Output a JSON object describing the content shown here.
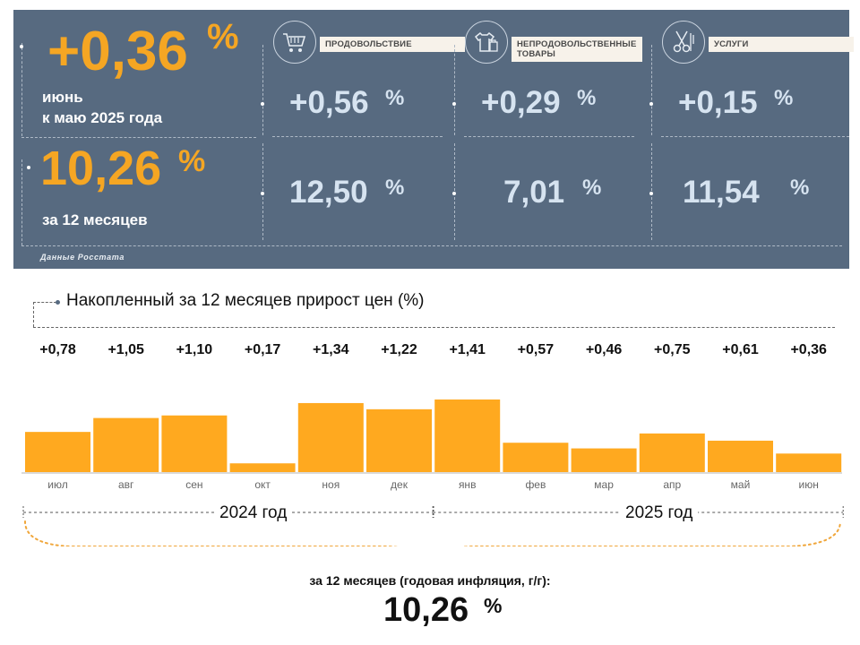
{
  "monthly": {
    "value": "+0,36",
    "percent_sign": "%",
    "caption_line1": "июнь",
    "caption_line2": "к маю 2025 года"
  },
  "annual": {
    "value": "10,26",
    "percent_sign": "%",
    "caption": "за 12 месяцев"
  },
  "categories": [
    {
      "label": "ПРОДОВОЛЬСТВИЕ",
      "icon": "shopping-cart-icon",
      "monthly": "+0,56",
      "annual": "12,50",
      "percent_sign": "%"
    },
    {
      "label": "НЕПРОДОВОЛЬСТВЕННЫЕ ТОВАРЫ",
      "icon": "clothing-icon",
      "monthly": "+0,29",
      "annual": "7,01",
      "percent_sign": "%"
    },
    {
      "label": "УСЛУГИ",
      "icon": "scissors-icon",
      "monthly": "+0,15",
      "annual": "11,54",
      "percent_sign": "%"
    }
  ],
  "source": "Данные Росстата",
  "chart_data": {
    "type": "bar",
    "title": "Накопленный за 12 месяцев прирост цен (%)",
    "categories": [
      "июл",
      "авг",
      "сен",
      "окт",
      "ноя",
      "дек",
      "янв",
      "фев",
      "мар",
      "апр",
      "май",
      "июн"
    ],
    "values": [
      0.78,
      1.05,
      1.1,
      0.17,
      1.34,
      1.22,
      1.41,
      0.57,
      0.46,
      0.75,
      0.61,
      0.36
    ],
    "value_labels": [
      "+0,78",
      "+1,05",
      "+1,10",
      "+0,17",
      "+1,34",
      "+1,22",
      "+1,41",
      "+0,57",
      "+0,46",
      "+0,75",
      "+0,61",
      "+0,36"
    ],
    "year_groups": [
      {
        "label": "2024 год",
        "start_index": 0,
        "end_index": 5
      },
      {
        "label": "2025 год",
        "start_index": 6,
        "end_index": 11
      }
    ],
    "bar_color": "#ffa91f",
    "xlabel": "",
    "ylabel": ""
  },
  "summary": {
    "caption": "за 12 месяцев (годовая инфляция, г/г):",
    "value": "10,26",
    "percent_sign": "%"
  },
  "colors": {
    "panel_bg": "#576a80",
    "accent_orange": "#f5a623",
    "value_light_blue": "#d6e3f0"
  }
}
